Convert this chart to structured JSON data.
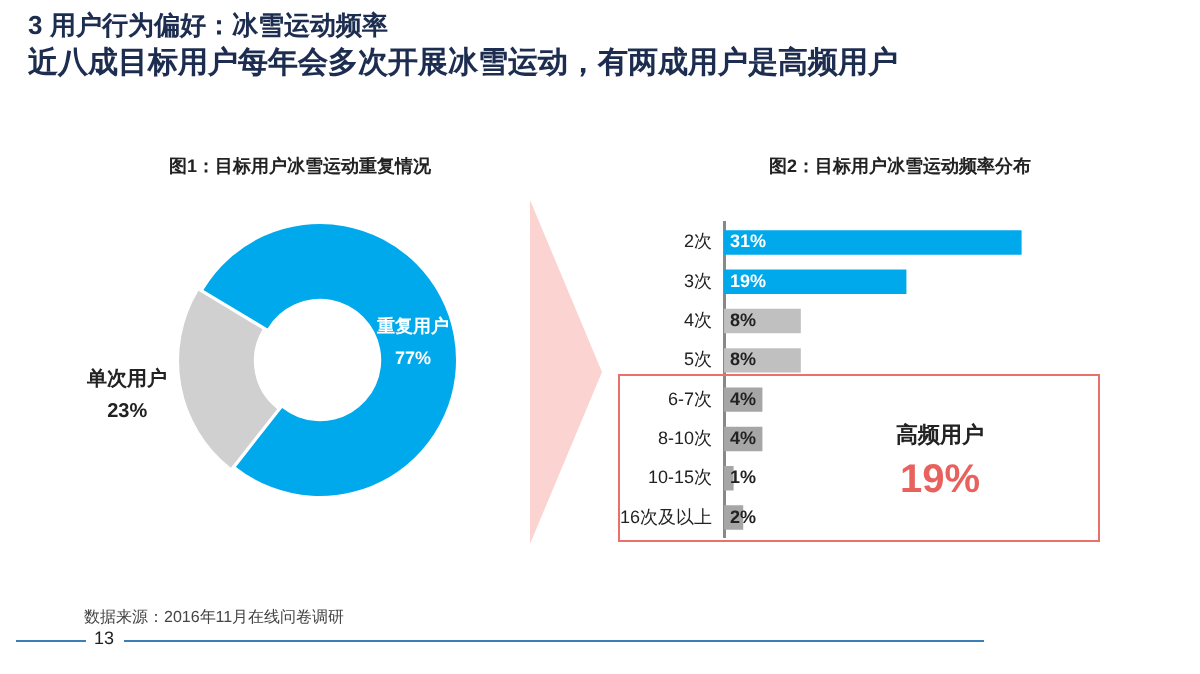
{
  "chart_data": [
    {
      "type": "donut",
      "title": "图1：目标用户冰雪运动重复情况",
      "categories": [
        "重复用户",
        "单次用户"
      ],
      "values": [
        77,
        23
      ],
      "colors": [
        "#00a9ec",
        "#d0d0d0"
      ],
      "value_labels": [
        "77%",
        "23%"
      ],
      "legend": false,
      "annotations": [
        "3 用户行为偏好：冰雪运动频率",
        "近八成目标用户每年会多次开展冰雪运动，有两成用户是高频用户",
        "数据来源：2016年11月在线问卷调研",
        "13"
      ]
    },
    {
      "type": "bar",
      "orientation": "horizontal",
      "title": "图2：目标用户冰雪运动频率分布",
      "categories": [
        "2次",
        "3次",
        "4次",
        "5次",
        "6-7次",
        "8-10次",
        "10-15次",
        "16次及以上"
      ],
      "values": [
        31,
        19,
        8,
        8,
        4,
        4,
        1,
        2
      ],
      "colors": [
        "#00a9ec",
        "#00a9ec",
        "#c0c0c0",
        "#c0c0c0",
        "#a6a6a6",
        "#a6a6a6",
        "#a6a6a6",
        "#a6a6a6"
      ],
      "value_labels": [
        "31%",
        "19%",
        "8%",
        "8%",
        "4%",
        "4%",
        "1%",
        "2%"
      ],
      "legend": false,
      "annotations": [
        "高频用户",
        "19%"
      ]
    }
  ]
}
